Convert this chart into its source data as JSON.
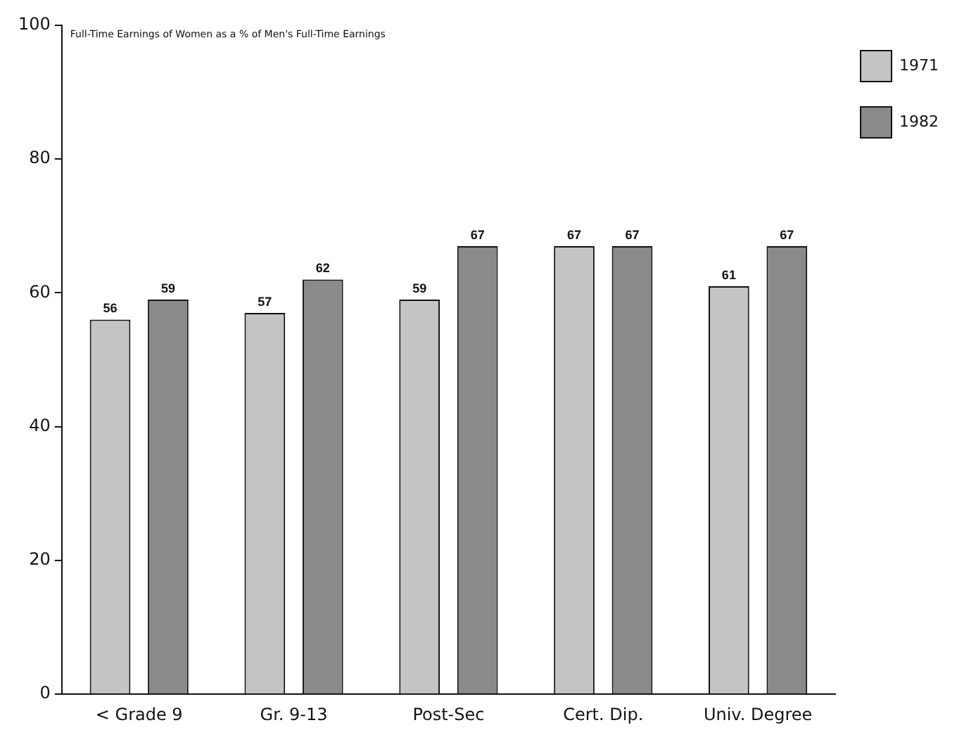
{
  "chart_data": {
    "type": "bar",
    "title": "Full-Time Earnings of Women as a % of Men's Full-Time Earnings",
    "categories": [
      "< Grade 9",
      "Gr. 9-13",
      "Post-Sec",
      "Cert. Dip.",
      "Univ. Degree"
    ],
    "series": [
      {
        "name": "1971",
        "color": "#c4c4c4",
        "values": [
          56,
          57,
          59,
          67,
          61
        ]
      },
      {
        "name": "1982",
        "color": "#8a8a8a",
        "values": [
          59,
          62,
          67,
          67,
          67
        ]
      }
    ],
    "ylim": [
      0,
      100
    ],
    "yticks": [
      0,
      20,
      40,
      60,
      80,
      100
    ],
    "grid": false,
    "legend": "top right",
    "data_labels": true
  }
}
